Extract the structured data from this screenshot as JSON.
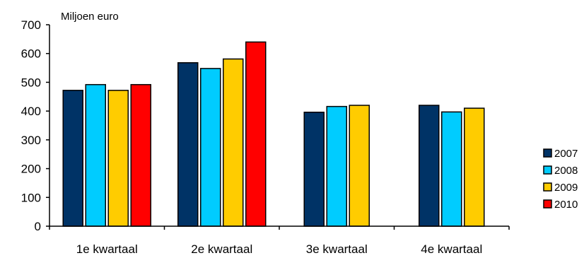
{
  "chart_data": {
    "type": "bar",
    "unit_label": "Miljoen euro",
    "categories": [
      "1e kwartaal",
      "2e kwartaal",
      "3e kwartaal",
      "4e kwartaal"
    ],
    "series": [
      {
        "name": "2007",
        "color": "#003366",
        "values": [
          472,
          568,
          396,
          420
        ]
      },
      {
        "name": "2008",
        "color": "#00CCFF",
        "values": [
          492,
          548,
          416,
          397
        ]
      },
      {
        "name": "2009",
        "color": "#FFCC00",
        "values": [
          472,
          581,
          420,
          410
        ]
      },
      {
        "name": "2010",
        "color": "#FF0000",
        "values": [
          492,
          640,
          null,
          null
        ]
      }
    ],
    "ylim": [
      0,
      700
    ],
    "yticks": [
      0,
      100,
      200,
      300,
      400,
      500,
      600,
      700
    ],
    "grid": false,
    "legend_position": "right"
  }
}
